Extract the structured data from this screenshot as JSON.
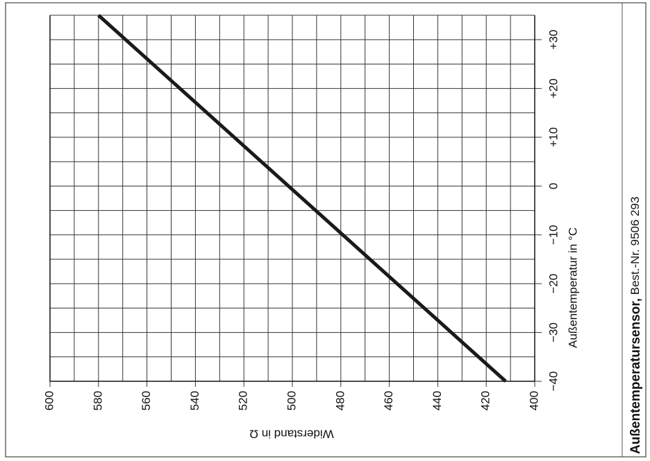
{
  "chart_data": {
    "type": "line",
    "title": "Außentemperatursensor,",
    "subtitle": "Best.-Nr. 9506 293",
    "xlabel": "Widerstand in Ω",
    "ylabel": "Außentemperatur in °C",
    "xlim": [
      600,
      400
    ],
    "xticks": [
      600,
      580,
      560,
      540,
      520,
      500,
      480,
      460,
      440,
      420,
      400
    ],
    "x_minor_ticks": [
      590,
      570,
      550,
      530,
      510,
      490,
      470,
      450,
      430,
      410
    ],
    "ylim": [
      -40,
      35
    ],
    "yticks": [
      {
        "value": -40,
        "label": "−40"
      },
      {
        "value": -30,
        "label": "−30"
      },
      {
        "value": -20,
        "label": "−20"
      },
      {
        "value": -10,
        "label": "−10"
      },
      0,
      {
        "value": 10,
        "label": "+10"
      },
      {
        "value": 20,
        "label": "+20"
      },
      {
        "value": 30,
        "label": "+30"
      }
    ],
    "y_minor_ticks": [
      -35,
      -25,
      -15,
      -5,
      5,
      15,
      25,
      35
    ],
    "grid": true,
    "series": [
      {
        "color": "#1a1a1a",
        "x": [
          412,
          580
        ],
        "y": [
          -40,
          35
        ]
      }
    ]
  }
}
